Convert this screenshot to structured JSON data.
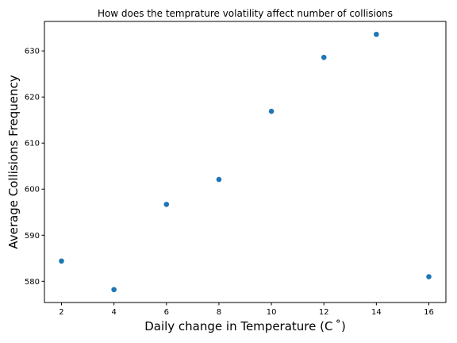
{
  "chart_data": {
    "type": "scatter",
    "title": "How does the temprature volatility affect number of collisions",
    "xlabel": "Daily change in Temperature (C$^\\circ$)",
    "xlabel_display": "Daily change in Temperature (C ˚)",
    "ylabel": "Average Collisions Frequency",
    "x": [
      2,
      4,
      6,
      8,
      10,
      12,
      14,
      16
    ],
    "y": [
      584.4,
      578.2,
      596.7,
      602.1,
      616.9,
      628.6,
      633.6,
      581.0
    ],
    "xlim": [
      1.35,
      16.65
    ],
    "ylim": [
      575.4,
      636.4
    ],
    "xticks": [
      2,
      4,
      6,
      8,
      10,
      12,
      14,
      16
    ],
    "yticks": [
      580,
      590,
      600,
      610,
      620,
      630
    ],
    "marker_color": "#1f77b4",
    "grid": false
  }
}
